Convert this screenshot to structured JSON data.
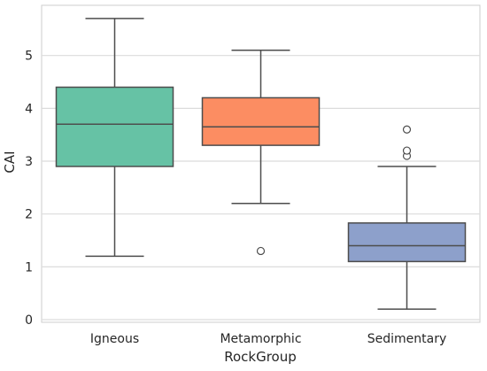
{
  "chart_data": {
    "type": "box",
    "xlabel": "RockGroup",
    "ylabel": "CAI",
    "ylim": [
      -0.05,
      5.95
    ],
    "yticks": [
      0,
      1,
      2,
      3,
      4,
      5
    ],
    "grid": true,
    "categories": [
      "Igneous",
      "Metamorphic",
      "Sedimentary"
    ],
    "boxes": [
      {
        "category": "Igneous",
        "whisker_low": 1.2,
        "q1": 2.9,
        "median": 3.7,
        "q3": 4.4,
        "whisker_high": 5.7,
        "outliers": [],
        "color": "#66c2a5"
      },
      {
        "category": "Metamorphic",
        "whisker_low": 2.2,
        "q1": 3.3,
        "median": 3.65,
        "q3": 4.2,
        "whisker_high": 5.1,
        "outliers": [
          1.3
        ],
        "color": "#fc8d62"
      },
      {
        "category": "Sedimentary",
        "whisker_low": 0.2,
        "q1": 1.1,
        "median": 1.4,
        "q3": 1.83,
        "whisker_high": 2.9,
        "outliers": [
          3.1,
          3.2,
          3.6
        ],
        "color": "#8da0cb"
      }
    ]
  }
}
